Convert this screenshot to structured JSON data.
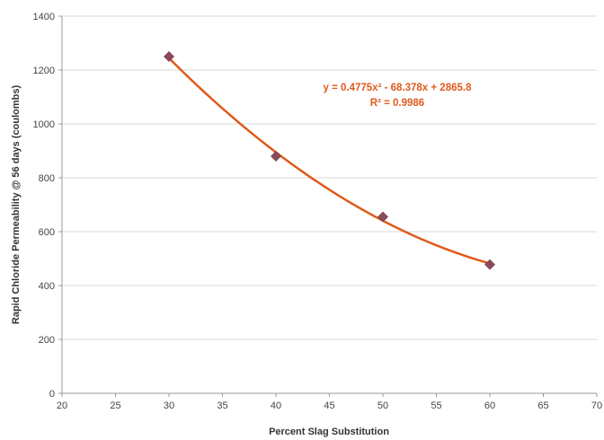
{
  "chart_data": {
    "type": "scatter",
    "title": "",
    "xlabel": "Percent Slag Substitution",
    "ylabel": "Rapid Chloride Permeability @ 56 days (coulombs)",
    "xlim": [
      20,
      70
    ],
    "ylim": [
      0,
      1400
    ],
    "x_ticks": [
      "20",
      "25",
      "30",
      "35",
      "40",
      "45",
      "50",
      "55",
      "60",
      "65",
      "70"
    ],
    "y_ticks": [
      "0",
      "200",
      "400",
      "600",
      "800",
      "1000",
      "1200",
      "1400"
    ],
    "grid": "horizontal",
    "legend": "none",
    "series": [
      {
        "x": [
          30,
          40,
          50,
          60
        ],
        "y": [
          1250,
          880,
          655,
          478
        ],
        "marker": "diamond",
        "marker_color": "#8b4a5a"
      }
    ],
    "trendline": {
      "type": "polynomial",
      "order": 2,
      "coefficients": [
        0.4775,
        -68.378,
        2865.8
      ],
      "x_range": [
        30,
        60
      ],
      "color": "#e05a1a"
    },
    "annotations": {
      "equation": "y = 0.4775x² - 68.378x + 2865.8",
      "r_squared": "R² = 0.9986"
    }
  }
}
